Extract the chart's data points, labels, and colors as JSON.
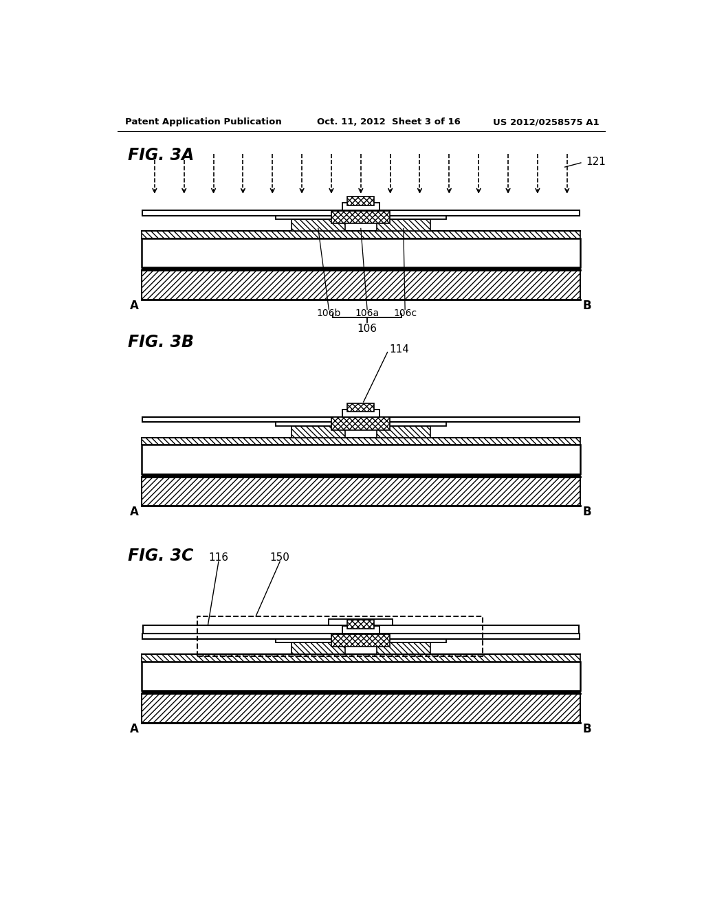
{
  "header_left": "Patent Application Publication",
  "header_mid": "Oct. 11, 2012  Sheet 3 of 16",
  "header_right": "US 2012/0258575 A1",
  "fig3a_label": "FIG. 3A",
  "fig3b_label": "FIG. 3B",
  "fig3c_label": "FIG. 3C",
  "label_121": "121",
  "label_114": "114",
  "label_116": "116",
  "label_150": "150",
  "label_106b": "106b",
  "label_106a": "106a",
  "label_106c": "106c",
  "label_106": "106",
  "label_A": "A",
  "label_B": "B",
  "bg_color": "#ffffff",
  "line_color": "#000000"
}
